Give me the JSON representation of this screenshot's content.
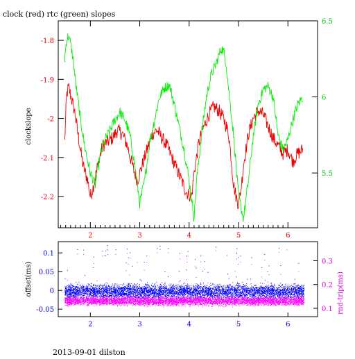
{
  "title": "clock (red) rtc (green) slopes",
  "footer": "2013-09-01 dilston",
  "colors": {
    "clock": "#ee0000",
    "rtc": "#00ee00",
    "offset": "#0000ff",
    "roundtrip": "#ff00ff",
    "frame": "#000000"
  },
  "chart_data": [
    {
      "type": "line",
      "title": "clock (red) rtc (green) slopes",
      "ylabel": "clockslope",
      "xlim": [
        1.35,
        6.6
      ],
      "xticks": [
        "2",
        "3",
        "4",
        "5",
        "6"
      ],
      "ylim_left": [
        -2.28,
        -1.75
      ],
      "yticks_left": [
        "-1.8",
        "-1.9",
        "-2",
        "-2.1",
        "-2.2"
      ],
      "ylim_right": [
        5.14,
        6.5
      ],
      "yticks_right": [
        "6.5",
        "6",
        "5.5"
      ],
      "series": [
        {
          "name": "clock",
          "axis": "left",
          "x": [
            1.48,
            1.52,
            1.56,
            1.62,
            1.68,
            1.75,
            1.85,
            1.95,
            2.0,
            2.05,
            2.15,
            2.25,
            2.35,
            2.45,
            2.55,
            2.65,
            2.75,
            2.85,
            2.95,
            3.05,
            3.15,
            3.25,
            3.35,
            3.45,
            3.55,
            3.65,
            3.75,
            3.85,
            3.95,
            4.05,
            4.1,
            4.2,
            4.3,
            4.4,
            4.5,
            4.6,
            4.7,
            4.8,
            4.85,
            4.9,
            4.95,
            5.0,
            5.05,
            5.1,
            5.2,
            5.3,
            5.4,
            5.5,
            5.6,
            5.7,
            5.8,
            5.9,
            6.0,
            6.1,
            6.2,
            6.3
          ],
          "y": [
            -2.06,
            -1.94,
            -1.92,
            -1.95,
            -1.98,
            -2.04,
            -2.12,
            -2.16,
            -2.2,
            -2.18,
            -2.12,
            -2.07,
            -2.06,
            -2.05,
            -2.03,
            -2.04,
            -2.07,
            -2.12,
            -2.16,
            -2.12,
            -2.08,
            -2.04,
            -2.03,
            -2.05,
            -2.07,
            -2.1,
            -2.13,
            -2.16,
            -2.19,
            -2.2,
            -2.14,
            -2.06,
            -2.02,
            -1.99,
            -1.97,
            -1.98,
            -2.0,
            -2.04,
            -2.1,
            -2.17,
            -2.2,
            -2.22,
            -2.18,
            -2.12,
            -2.04,
            -2.0,
            -1.98,
            -1.99,
            -2.02,
            -2.05,
            -2.07,
            -2.09,
            -2.08,
            -2.11,
            -2.09,
            -2.08
          ]
        },
        {
          "name": "rtc",
          "axis": "right",
          "x": [
            1.48,
            1.52,
            1.56,
            1.6,
            1.65,
            1.7,
            1.8,
            1.9,
            2.0,
            2.1,
            2.2,
            2.3,
            2.4,
            2.5,
            2.6,
            2.7,
            2.8,
            2.9,
            3.0,
            3.1,
            3.2,
            3.3,
            3.4,
            3.5,
            3.6,
            3.7,
            3.8,
            3.9,
            4.0,
            4.1,
            4.15,
            4.25,
            4.35,
            4.45,
            4.55,
            4.65,
            4.7,
            4.75,
            4.8,
            4.9,
            5.0,
            5.1,
            5.2,
            5.3,
            5.4,
            5.5,
            5.6,
            5.7,
            5.75,
            5.8,
            5.9,
            6.0,
            6.1,
            6.2,
            6.3
          ],
          "y": [
            6.25,
            6.38,
            6.4,
            6.35,
            6.25,
            6.1,
            5.85,
            5.65,
            5.5,
            5.42,
            5.62,
            5.72,
            5.78,
            5.85,
            5.9,
            5.85,
            5.75,
            5.55,
            5.3,
            5.45,
            5.7,
            5.85,
            6.0,
            6.06,
            6.08,
            5.95,
            5.8,
            5.65,
            5.45,
            5.2,
            5.45,
            5.75,
            6.0,
            6.15,
            6.22,
            6.32,
            6.3,
            6.22,
            6.05,
            5.75,
            5.35,
            5.2,
            5.45,
            5.75,
            5.95,
            6.05,
            6.07,
            6.0,
            5.88,
            5.75,
            5.65,
            5.72,
            5.85,
            5.95,
            6.0
          ]
        }
      ]
    },
    {
      "type": "scatter",
      "ylabel_left": "offset(ms)",
      "ylabel_right": "rnd-trip(ms)",
      "xlabel": "",
      "xlim": [
        1.35,
        6.6
      ],
      "xticks": [
        "2",
        "3",
        "4",
        "5",
        "6"
      ],
      "ylim_left": [
        -0.07,
        0.13
      ],
      "yticks_left": [
        "0.1",
        "0.05",
        "0",
        "-0.05"
      ],
      "ylim_right": [
        0.065,
        0.38
      ],
      "yticks_right": [
        "0.3",
        "0.2",
        "0.1"
      ],
      "series": [
        {
          "name": "offset",
          "axis": "left",
          "center": 0.0,
          "band": [
            -0.03,
            0.025
          ]
        },
        {
          "name": "rnd-trip",
          "axis": "right",
          "center": 0.12,
          "band": [
            0.105,
            0.16
          ]
        }
      ]
    }
  ]
}
